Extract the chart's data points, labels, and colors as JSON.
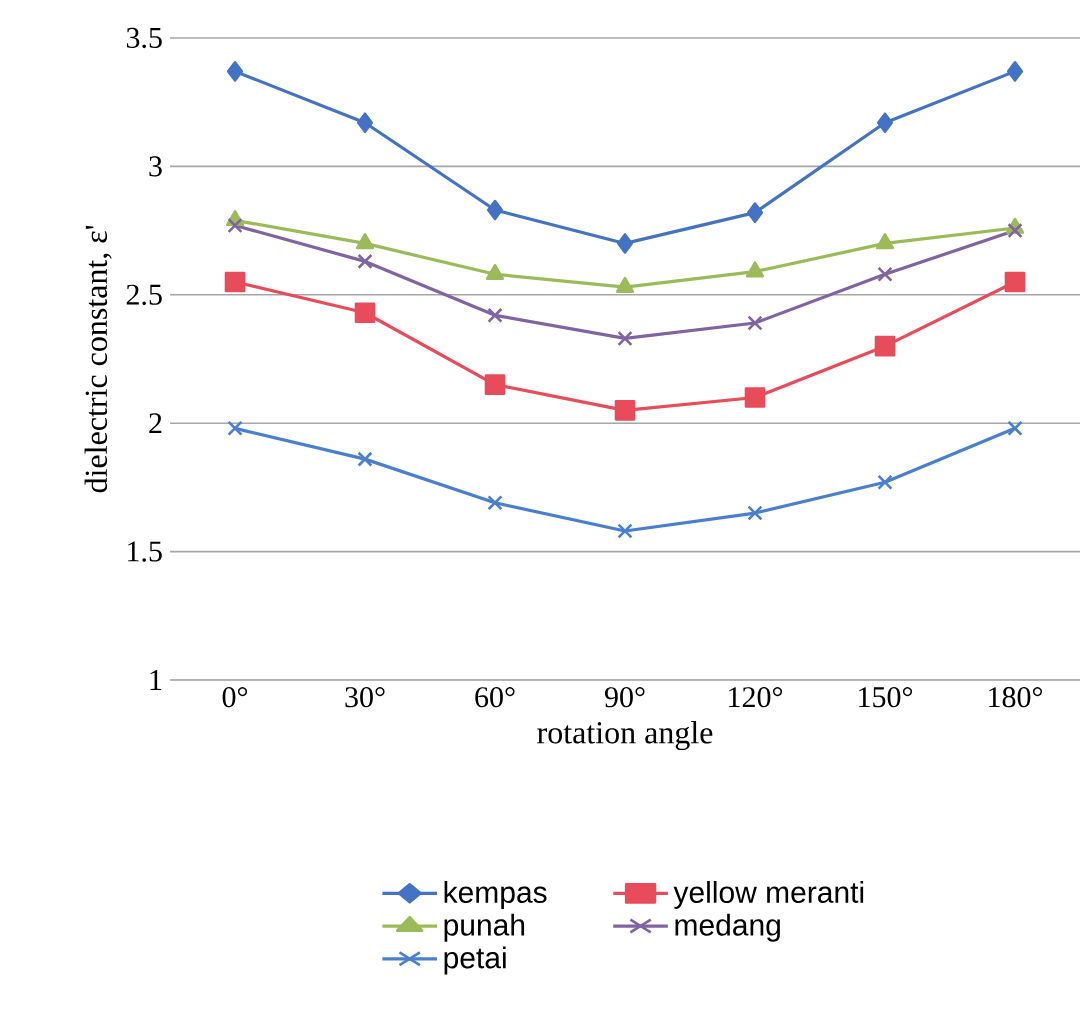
{
  "chart_data": {
    "type": "line",
    "xlabel": "rotation angle",
    "ylabel": "dielectric constant, ε'",
    "categories": [
      "0°",
      "30°",
      "60°",
      "90°",
      "120°",
      "150°",
      "180°"
    ],
    "series": [
      {
        "name": "kempas",
        "color": "#4472c4",
        "marker": "diamond",
        "values": [
          3.37,
          3.17,
          2.83,
          2.7,
          2.82,
          3.17,
          3.37
        ]
      },
      {
        "name": "yellow meranti",
        "color": "#e84c5a",
        "marker": "square",
        "values": [
          2.55,
          2.43,
          2.15,
          2.05,
          2.1,
          2.3,
          2.55
        ]
      },
      {
        "name": "punah",
        "color": "#9bbb59",
        "marker": "triangle",
        "values": [
          2.79,
          2.7,
          2.58,
          2.53,
          2.59,
          2.7,
          2.76
        ]
      },
      {
        "name": "medang",
        "color": "#8064a2",
        "marker": "cross",
        "values": [
          2.77,
          2.63,
          2.42,
          2.33,
          2.39,
          2.58,
          2.75
        ]
      },
      {
        "name": "petai",
        "color": "#4a7fd0",
        "marker": "cross",
        "values": [
          1.98,
          1.86,
          1.69,
          1.58,
          1.65,
          1.77,
          1.98
        ]
      }
    ],
    "ylim": [
      1,
      3.5
    ],
    "yticks": [
      1,
      1.5,
      2,
      2.5,
      3,
      3.5
    ],
    "grid": "y",
    "legend": "bottom",
    "line_style": "solid"
  }
}
